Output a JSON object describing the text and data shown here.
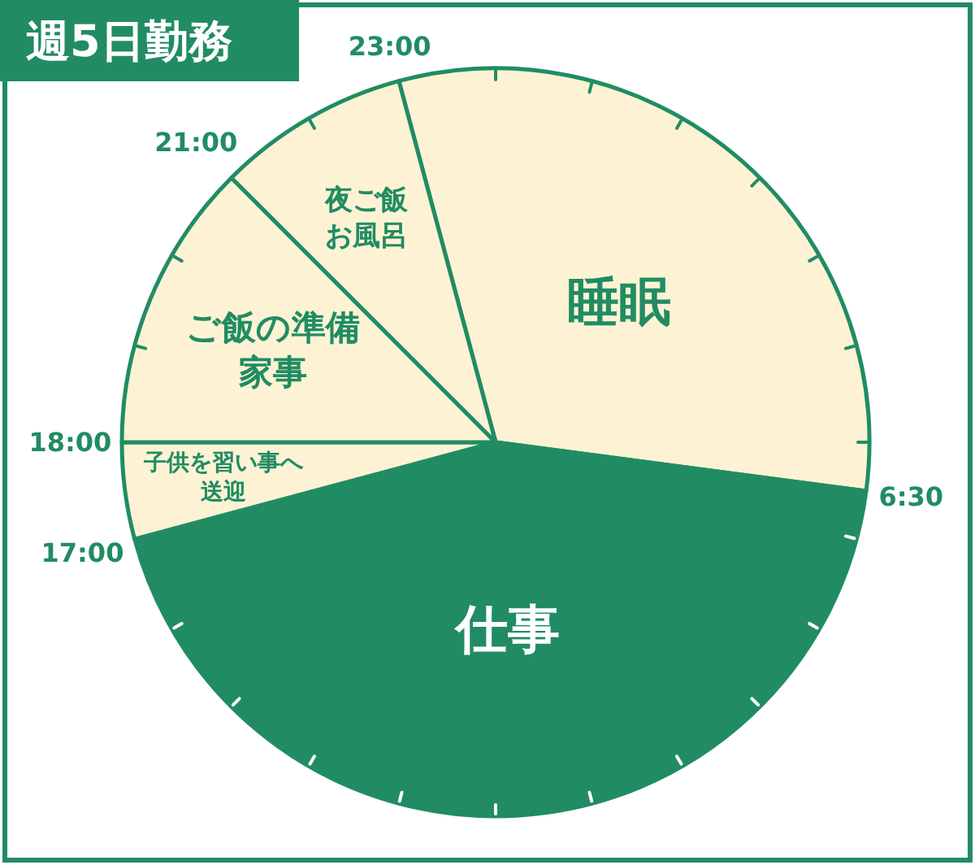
{
  "chart_data": {
    "type": "pie",
    "title": "週5日勤務",
    "categories": [
      "睡眠",
      "仕事",
      "子供を習い事へ送迎",
      "ご飯の準備家事",
      "夜ご飯お風呂"
    ],
    "values": [
      31.25,
      43.75,
      4.17,
      12.5,
      8.33
    ],
    "colors": [
      "#fdf3d4",
      "#218c63",
      "#fdf3d4",
      "#fdf3d4",
      "#fdf3d4"
    ],
    "annotations": [
      "23:00",
      "6:30",
      "17:00",
      "18:00",
      "21:00"
    ]
  }
}
